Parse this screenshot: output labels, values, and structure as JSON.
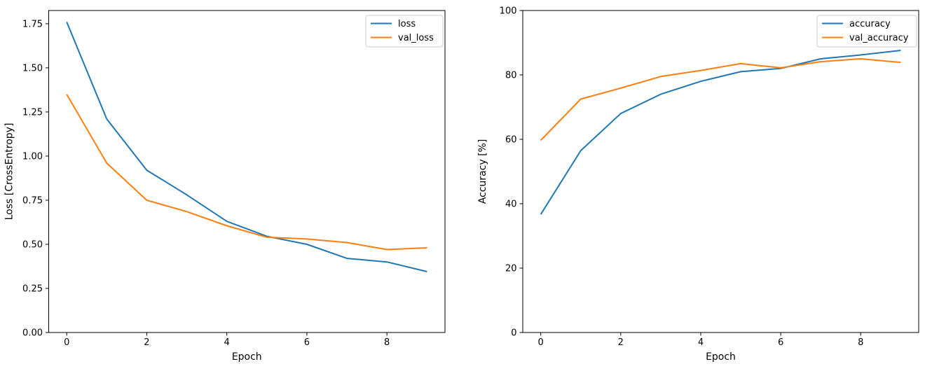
{
  "figure": {
    "background": "#ffffff",
    "text_color": "#000000",
    "spine_color": "#000000",
    "legend_border_color": "#cccccc"
  },
  "chart_data": [
    {
      "id": "loss-chart",
      "type": "line",
      "title": "",
      "xlabel": "Epoch",
      "ylabel": "Loss [CrossEntropy]",
      "x": [
        0,
        1,
        2,
        3,
        4,
        5,
        6,
        7,
        8,
        9
      ],
      "series": [
        {
          "name": "loss",
          "color": "#1f77b4",
          "values": [
            1.76,
            1.21,
            0.92,
            0.78,
            0.63,
            0.545,
            0.5,
            0.42,
            0.4,
            0.345
          ]
        },
        {
          "name": "val_loss",
          "color": "#ff7f0e",
          "values": [
            1.35,
            0.96,
            0.75,
            0.685,
            0.605,
            0.54,
            0.53,
            0.51,
            0.47,
            0.48
          ]
        }
      ],
      "xlim": [
        -0.45,
        9.45
      ],
      "ylim": [
        0,
        1.825
      ],
      "x_ticks": [
        0,
        2,
        4,
        6,
        8
      ],
      "x_tick_labels": [
        "0",
        "2",
        "4",
        "6",
        "8"
      ],
      "y_ticks": [
        0,
        0.25,
        0.5,
        0.75,
        1.0,
        1.25,
        1.5,
        1.75
      ],
      "y_tick_labels": [
        "0.00",
        "0.25",
        "0.50",
        "0.75",
        "1.00",
        "1.25",
        "1.50",
        "1.75"
      ],
      "legend": {
        "position": "upper right",
        "entries": [
          "loss",
          "val_loss"
        ]
      },
      "grid": false
    },
    {
      "id": "accuracy-chart",
      "type": "line",
      "title": "",
      "xlabel": "Epoch",
      "ylabel": "Accuracy [%]",
      "x": [
        0,
        1,
        2,
        3,
        4,
        5,
        6,
        7,
        8,
        9
      ],
      "series": [
        {
          "name": "accuracy",
          "color": "#1f77b4",
          "values": [
            36.7,
            56.5,
            68.0,
            74.0,
            78.0,
            81.0,
            82.0,
            85.0,
            86.2,
            87.6
          ]
        },
        {
          "name": "val_accuracy",
          "color": "#ff7f0e",
          "values": [
            59.7,
            72.5,
            75.9,
            79.5,
            81.4,
            83.5,
            82.2,
            84.1,
            85.0,
            83.9
          ]
        }
      ],
      "xlim": [
        -0.45,
        9.45
      ],
      "ylim": [
        0,
        100
      ],
      "x_ticks": [
        0,
        2,
        4,
        6,
        8
      ],
      "x_tick_labels": [
        "0",
        "2",
        "4",
        "6",
        "8"
      ],
      "y_ticks": [
        0,
        20,
        40,
        60,
        80,
        100
      ],
      "y_tick_labels": [
        "0",
        "20",
        "40",
        "60",
        "80",
        "100"
      ],
      "legend": {
        "position": "upper right",
        "entries": [
          "accuracy",
          "val_accuracy"
        ]
      },
      "grid": false
    }
  ]
}
